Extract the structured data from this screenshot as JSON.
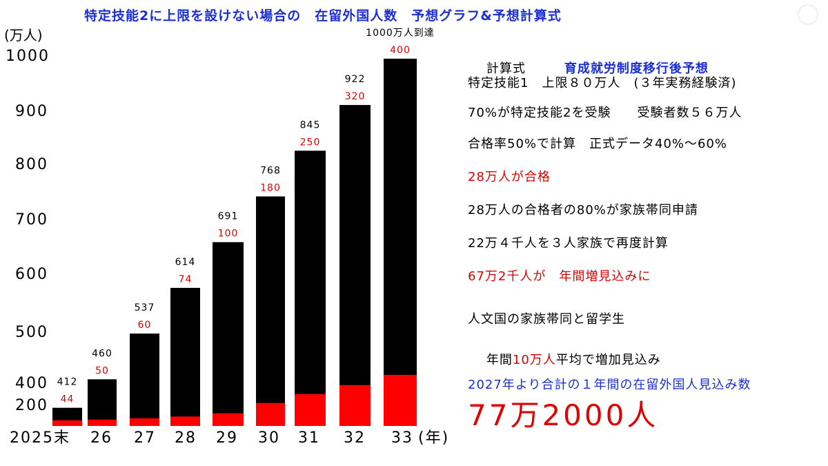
{
  "page_title": "特定技能2に上限を設けない場合の　在留外国人数　予想グラフ&予想計算式",
  "chart_data": {
    "type": "bar",
    "categories": [
      "2025末",
      "26",
      "27",
      "28",
      "29",
      "30",
      "31",
      "32",
      "33"
    ],
    "x_unit": "(年)",
    "y_unit": "(万人)",
    "y_ticks": [
      "1000",
      "900",
      "800",
      "700",
      "600",
      "500",
      "400",
      "200"
    ],
    "series": [
      {
        "values": [
          412,
          460,
          537,
          614,
          691,
          768,
          845,
          922,
          1000
        ],
        "color": "#000000"
      },
      {
        "values": [
          44,
          50,
          60,
          74,
          100,
          180,
          250,
          320,
          400
        ],
        "color": "#ff0000"
      }
    ],
    "annotations": {
      "top_bar": "1000万人到達"
    }
  },
  "panel": {
    "formula_label": "計算式",
    "formula_subtitle": "育成就労制度移行後予想",
    "line1": "特定技能1　上限８０万人　(３年実務経験済)",
    "line2": "70%が特定技能2を受験　　受験者数５６万人",
    "line3": "合格率50%で計算　正式データ40%～60%",
    "line4": "28万人が合格",
    "line5": "28万人の合格者の80%が家族帯同申請",
    "line6": "22万４千人を３人家族で再度計算",
    "line7": "67万2千人が　年間増見込みに",
    "line8": "人文国の家族帯同と留学生",
    "line9_a": "年間",
    "line9_b": "10万人",
    "line9_c": "平均で増加見込み",
    "line10": "2027年より合計の１年間の在留外国人見込み数",
    "result": "77万2000人"
  }
}
